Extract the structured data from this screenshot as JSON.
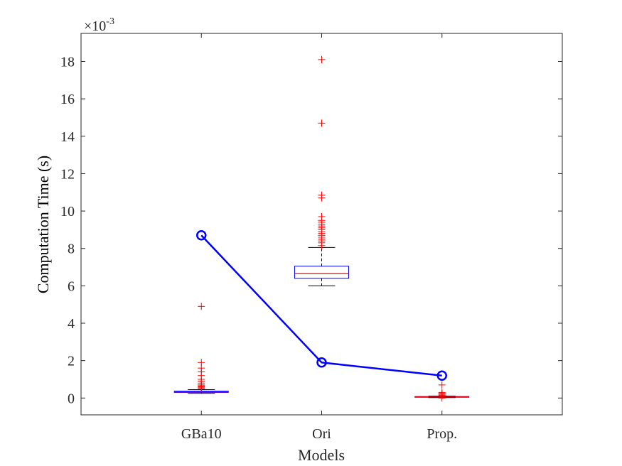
{
  "chart_data": {
    "type": "box",
    "xlabel": "Models",
    "ylabel": "Computation Time (s)",
    "y_scale_multiplier": "×10",
    "y_scale_exponent": "-3",
    "ylim": [
      -0.9,
      19.5
    ],
    "yticks": [
      0,
      2,
      4,
      6,
      8,
      10,
      12,
      14,
      16,
      18
    ],
    "categories": [
      "GBa10",
      "Ori",
      "Prop."
    ],
    "grid": false,
    "colors": {
      "box": "#0000ff",
      "median": "#ff0000",
      "whisker": "#000000",
      "outlier": "#ff0000",
      "line": "#0000ff"
    },
    "boxes": [
      {
        "category": "GBa10",
        "q1": 0.3,
        "median": 0.33,
        "q3": 0.37,
        "whisker_low": 0.25,
        "whisker_high": 0.45,
        "outliers": [
          0.5,
          0.55,
          0.6,
          0.65,
          0.7,
          0.8,
          0.9,
          1.0,
          1.2,
          1.4,
          1.6,
          1.9,
          4.9
        ]
      },
      {
        "category": "Ori",
        "q1": 6.4,
        "median": 6.65,
        "q3": 7.05,
        "whisker_low": 6.0,
        "whisker_high": 8.05,
        "outliers": [
          8.15,
          8.3,
          8.4,
          8.5,
          8.6,
          8.7,
          8.8,
          8.9,
          9.0,
          9.1,
          9.2,
          9.3,
          9.4,
          9.5,
          9.7,
          10.7,
          10.85,
          14.7,
          18.1
        ]
      },
      {
        "category": "Prop.",
        "q1": 0.04,
        "median": 0.06,
        "q3": 0.08,
        "whisker_low": 0.02,
        "whisker_high": 0.1,
        "outliers": [
          0.0,
          0.15,
          0.2,
          0.25,
          0.3,
          0.7
        ]
      }
    ],
    "line_series": {
      "values": [
        8.7,
        1.9,
        1.2
      ],
      "marker": "circle"
    }
  }
}
